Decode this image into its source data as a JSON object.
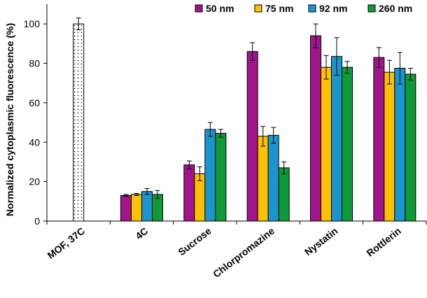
{
  "chart_data": {
    "type": "bar",
    "title": "",
    "ylabel": "Normalized cytoplasmic fluorescence (%)",
    "xlabel": "",
    "ylim": [
      0,
      110
    ],
    "yticks": [
      0,
      20,
      40,
      60,
      80,
      100
    ],
    "categories": [
      "MOF, 37C",
      "4C",
      "Sucrose",
      "Chlorpromazine",
      "Nystatin",
      "Rottlerin"
    ],
    "control": {
      "category": "MOF, 37C",
      "value": 100,
      "error": 3,
      "fill": "#ffffff",
      "pattern": "dots"
    },
    "legend_position": "top-right",
    "series": [
      {
        "name": "50 nm",
        "color": "#a0148c",
        "values": [
          null,
          13,
          28.5,
          86,
          94,
          83
        ],
        "errors": [
          null,
          0.5,
          2,
          4.5,
          6,
          5
        ]
      },
      {
        "name": "75 nm",
        "color": "#ffc000",
        "values": [
          null,
          13.5,
          24,
          43,
          78,
          75.5
        ],
        "errors": [
          null,
          0.5,
          3.5,
          5,
          6,
          6
        ]
      },
      {
        "name": "92 nm",
        "color": "#1b95d0",
        "values": [
          null,
          15,
          46.5,
          43.5,
          83.5,
          77.5
        ],
        "errors": [
          null,
          1.5,
          3.5,
          4,
          9.5,
          8
        ]
      },
      {
        "name": "260 nm",
        "color": "#0e9a37",
        "values": [
          null,
          13.5,
          44.5,
          27,
          78,
          74.5
        ],
        "errors": [
          null,
          2,
          2,
          3,
          3,
          3
        ]
      }
    ]
  }
}
